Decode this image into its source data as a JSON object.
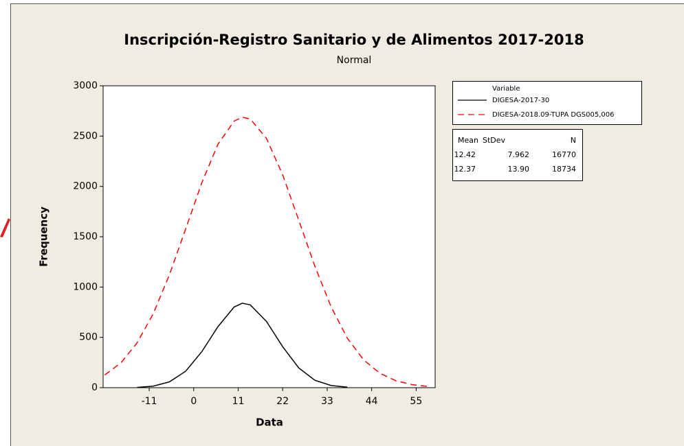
{
  "chart_data": {
    "type": "line",
    "title": "Inscripción-Registro Sanitario y de Alimentos 2017-2018",
    "subtitle": "Normal",
    "x_label": "Data",
    "y_label": "Frequency",
    "x": [
      -22,
      -18,
      -14,
      -10,
      -6,
      -2,
      2,
      6,
      10,
      12,
      14,
      18,
      22,
      26,
      30,
      34,
      38,
      42,
      46,
      50,
      54,
      58
    ],
    "series": [
      {
        "name": "DIGESA-2017-30",
        "color": "#000000",
        "dash": "solid",
        "values": [
          null,
          null,
          3,
          16,
          58,
          163,
          357,
          607,
          802,
          839,
          823,
          657,
          407,
          196,
          73,
          21,
          5,
          null,
          null,
          null,
          null,
          null
        ]
      },
      {
        "name": "DIGESA-2018.09-TUPA DGS005,006",
        "color": "#ff0000",
        "dash": "dashed",
        "values": [
          126,
          247,
          445,
          736,
          1123,
          1576,
          2035,
          2420,
          2649,
          2688,
          2670,
          2476,
          2115,
          1662,
          1203,
          801,
          491,
          277,
          144,
          69,
          30,
          12
        ]
      }
    ],
    "legend_title": "Variable",
    "stats": {
      "headers": [
        "Mean",
        "StDev",
        "N"
      ],
      "rows": [
        [
          "12.42",
          "7.962",
          "16770"
        ],
        [
          "12.37",
          "13.90",
          "18734"
        ]
      ]
    },
    "xlim": [
      -22.4,
      59.7
    ],
    "ylim": [
      0,
      3000
    ],
    "xticks": [
      -11,
      0,
      11,
      22,
      33,
      44,
      55
    ],
    "yticks": [
      0,
      500,
      1000,
      1500,
      2000,
      2500,
      3000
    ],
    "grid": false
  }
}
